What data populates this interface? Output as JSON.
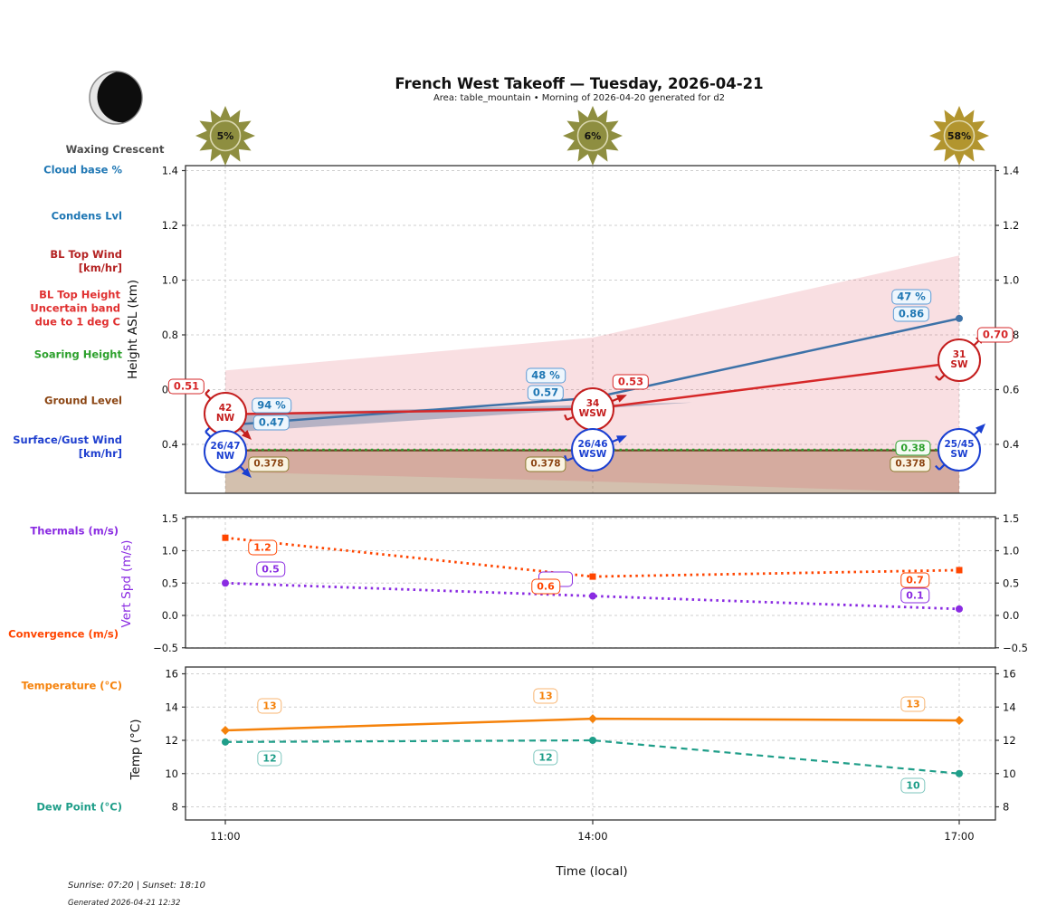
{
  "header": {
    "title": "French West Takeoff — Tuesday, 2026-04-21",
    "subtitle": "Area: table_mountain • Morning of 2026-04-20 generated for d2"
  },
  "moon": {
    "phase_label": "Waxing Crescent"
  },
  "suns": [
    {
      "label": "5%",
      "color": "#8e8e40"
    },
    {
      "label": "6%",
      "color": "#8e8e40"
    },
    {
      "label": "58%",
      "color": "#b2952f"
    }
  ],
  "left_labels": [
    {
      "id": "cloud-base",
      "lines": [
        "Cloud base %"
      ],
      "color": "#1f77b4"
    },
    {
      "id": "condens-lvl",
      "lines": [
        "Condens Lvl"
      ],
      "color": "#1f77b4"
    },
    {
      "id": "bl-top-wind",
      "lines": [
        "BL Top Wind",
        "[km/hr]"
      ],
      "color": "#b42222"
    },
    {
      "id": "bl-top-height",
      "lines": [
        "BL Top Height",
        "Uncertain band",
        "due to 1 deg C"
      ],
      "color": "#e03030"
    },
    {
      "id": "soaring-height",
      "lines": [
        "Soaring Height"
      ],
      "color": "#2ca02c"
    },
    {
      "id": "ground-level",
      "lines": [
        "Ground Level"
      ],
      "color": "#8b4513"
    },
    {
      "id": "surface-gust-wind",
      "lines": [
        "Surface/Gust Wind",
        "[km/hr]"
      ],
      "color": "#2040cf"
    },
    {
      "id": "thermals",
      "lines": [
        "Thermals (m/s)"
      ],
      "color": "#8a2be2"
    },
    {
      "id": "convergence",
      "lines": [
        "Convergence (m/s)"
      ],
      "color": "#ff4500"
    },
    {
      "id": "temperature",
      "lines": [
        "Temperature (°C)"
      ],
      "color": "#f5820b"
    },
    {
      "id": "dew-point",
      "lines": [
        "Dew Point (°C)"
      ],
      "color": "#1f9e89"
    }
  ],
  "footer": {
    "sun_times": "Sunrise: 07:20 | Sunset: 18:10",
    "generated": "Generated 2026-04-21 12:32"
  },
  "chart_data": [
    {
      "type": "line",
      "ylabel": "Height ASL (km)",
      "x_ticklabels": [
        "11:00",
        "14:00",
        "17:00"
      ],
      "yticks": [
        0.4,
        0.6,
        0.8,
        1.0,
        1.2,
        1.4
      ],
      "ylim": [
        0.22,
        1.42
      ],
      "grid": true,
      "series": [
        {
          "name": "Condens Lvl",
          "color": "#3d72a8",
          "style": "solid",
          "marker": "circle",
          "width": 2.5,
          "values": [
            0.47,
            0.57,
            0.86
          ]
        },
        {
          "name": "BL Top Height",
          "color": "#d62728",
          "style": "solid",
          "width": 2.5,
          "values": [
            0.51,
            0.53,
            0.7
          ]
        },
        {
          "name": "Ground Level",
          "color": "#6b4423",
          "style": "solid",
          "width": 2.2,
          "values": [
            0.378,
            0.378,
            0.378
          ]
        },
        {
          "name": "Soaring Height",
          "color": "#2e9e2e",
          "style": "dotted",
          "width": 2.5,
          "values": [
            0.38,
            0.38,
            0.38
          ]
        }
      ],
      "point_labels": {
        "cloud_base_pct": {
          "color": "#1f77b4",
          "bg": "#eef6fd",
          "values": [
            "94 %",
            "48 %",
            "47 %"
          ]
        },
        "condens": {
          "color": "#1f77b4",
          "bg": "#eef6fd",
          "values": [
            "0.47",
            "0.57",
            "0.86"
          ]
        },
        "bl_top": {
          "color": "#d62728",
          "bg": "#ffffff",
          "values": [
            "0.51",
            "0.53",
            "0.70"
          ]
        },
        "soaring": {
          "color": "#2ca02c",
          "bg": "#f4fbf4",
          "values": [
            null,
            null,
            "0.38"
          ]
        },
        "ground": {
          "color": "#8b4513",
          "border": "#8a7a2e",
          "bg": "#faf3e2",
          "values": [
            "0.378",
            "0.378",
            "0.378"
          ]
        }
      },
      "wind_markers": {
        "bl_top": {
          "color": "#c41e1e",
          "entries": [
            {
              "speed": "42",
              "dir": "NW"
            },
            {
              "speed": "34",
              "dir": "WSW"
            },
            {
              "speed": "31",
              "dir": "SW"
            }
          ]
        },
        "surface": {
          "color": "#1a3fd1",
          "entries": [
            {
              "speed": "26/47",
              "dir": "NW"
            },
            {
              "speed": "26/46",
              "dir": "WSW"
            },
            {
              "speed": "25/45",
              "dir": "SW"
            }
          ]
        }
      },
      "bands": {
        "bl_uncertainty": {
          "color": "#e05060",
          "opacity": 0.18,
          "upper": [
            0.67,
            0.79,
            1.09
          ],
          "lower": [
            0.3,
            0.265,
            0.222
          ]
        },
        "ground_fill": {
          "color": "#96693f",
          "opacity": 0.42,
          "top": 0.378
        },
        "condens_wedge": {
          "color": "#6d82a3",
          "opacity": 0.48,
          "points": [
            [
              0,
              0.443
            ],
            [
              0,
              0.512
            ],
            [
              1.27,
              0.553
            ]
          ]
        }
      }
    },
    {
      "type": "line",
      "ylabel": "Vert Spd (m/s)",
      "ylabel_color": "#8a2be2",
      "yticks": [
        -0.5,
        0.0,
        0.5,
        1.0,
        1.5
      ],
      "ylim": [
        -0.5,
        1.5
      ],
      "grid": true,
      "series": [
        {
          "name": "Convergence",
          "color": "#ff4500",
          "style": "dotted",
          "marker": "square",
          "width": 2.8,
          "values": [
            1.2,
            0.6,
            0.7
          ],
          "labels": [
            "1.2",
            "0.6",
            "0.7"
          ]
        },
        {
          "name": "Thermals",
          "color": "#8a2be2",
          "style": "dotted",
          "marker": "circle",
          "width": 2.8,
          "values": [
            0.5,
            0.3,
            0.1
          ],
          "labels": [
            "0.5",
            "",
            "0.1"
          ]
        }
      ]
    },
    {
      "type": "line",
      "ylabel": "Temp (°C)",
      "xlabel": "Time (local)",
      "yticks": [
        8,
        10,
        12,
        14,
        16
      ],
      "ylim": [
        6.6,
        16.4
      ],
      "grid": true,
      "series": [
        {
          "name": "Temperature",
          "color": "#f5820b",
          "style": "solid",
          "marker": "diamond",
          "width": 2.5,
          "values": [
            12.6,
            13.3,
            13.2
          ],
          "labels": [
            "13",
            "13",
            "13"
          ]
        },
        {
          "name": "Dew Point",
          "color": "#1f9e89",
          "style": "dashed",
          "marker": "circle",
          "width": 2.2,
          "values": [
            11.9,
            12.0,
            10.0
          ],
          "labels": [
            "12",
            "12",
            "10"
          ]
        }
      ]
    }
  ]
}
